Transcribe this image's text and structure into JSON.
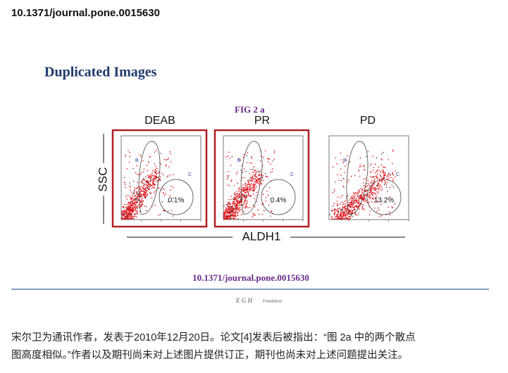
{
  "header": {
    "doi": "10.1371/journal.pone.0015630"
  },
  "figure": {
    "title": "Duplicated Images",
    "label": "FIG 2 a",
    "panels": [
      {
        "name": "DEAB",
        "gate_b": "B",
        "gate_c": "C",
        "percent": "0.1%"
      },
      {
        "name": "PR",
        "gate_b": "B",
        "gate_c": "C",
        "percent": "0.4%"
      },
      {
        "name": "PD",
        "gate_b": "B",
        "gate_c": "C",
        "percent": "13.2%"
      }
    ],
    "y_axis": "SSC",
    "x_axis": "ALDH1",
    "doi": "10.1371/journal.pone.0015630",
    "logo": "E G H",
    "foundation": "Foundation"
  },
  "body": {
    "lines": [
      "宋尔卫为通讯作者，发表于2010年12月20日。论文[4]发表后被指出：“图 2a 中的两个散点",
      "图高度相似。”作者以及期刊尚未对上述图片提供订正，期刊也尚未对上述问题提出关注。"
    ]
  }
}
